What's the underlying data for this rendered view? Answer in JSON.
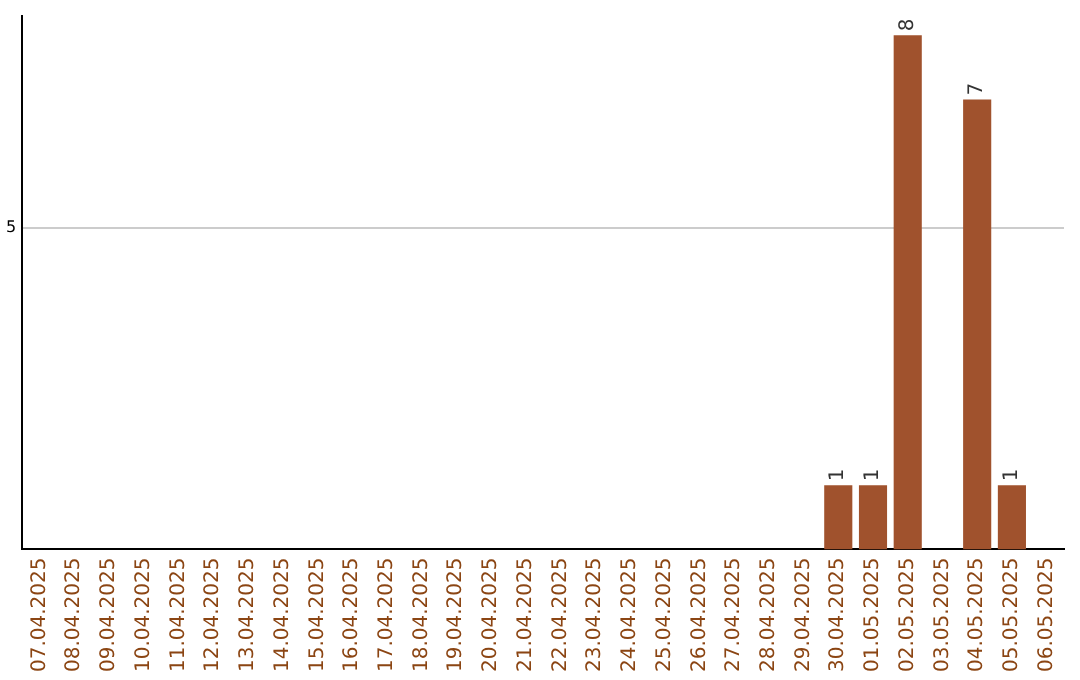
{
  "chart_data": {
    "type": "bar",
    "categories": [
      "07.04.2025",
      "08.04.2025",
      "09.04.2025",
      "10.04.2025",
      "11.04.2025",
      "12.04.2025",
      "13.04.2025",
      "14.04.2025",
      "15.04.2025",
      "16.04.2025",
      "17.04.2025",
      "18.04.2025",
      "19.04.2025",
      "20.04.2025",
      "21.04.2025",
      "22.04.2025",
      "23.04.2025",
      "24.04.2025",
      "25.04.2025",
      "26.04.2025",
      "27.04.2025",
      "28.04.2025",
      "29.04.2025",
      "30.04.2025",
      "01.05.2025",
      "02.05.2025",
      "03.05.2025",
      "04.05.2025",
      "05.05.2025",
      "06.05.2025"
    ],
    "values": [
      null,
      null,
      null,
      null,
      null,
      null,
      null,
      null,
      null,
      null,
      null,
      null,
      null,
      null,
      null,
      null,
      null,
      null,
      null,
      null,
      null,
      null,
      null,
      1,
      1,
      8,
      null,
      7,
      1,
      null
    ],
    "color": "#a0522d",
    "ylim": [
      0,
      8.3
    ],
    "yticks": [
      5
    ],
    "grid": "y",
    "data_labels": true,
    "legend": false
  }
}
